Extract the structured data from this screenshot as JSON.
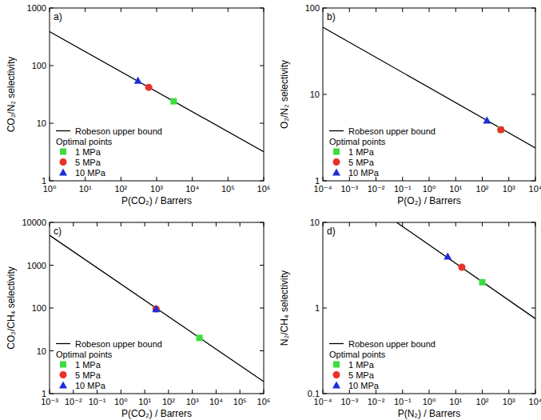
{
  "chart_data": [
    {
      "type": "scatter",
      "title": "a)",
      "xlabel": "P(CO₂) / Barrers",
      "ylabel": "CO₂/N₂ selectivity",
      "log": true,
      "legend": "lower left",
      "legend_title": "Optimal points",
      "xlim": [
        1,
        1000000
      ],
      "ylim": [
        1,
        1000
      ],
      "xticks": [
        {
          "value": 1,
          "label": "10⁰"
        },
        {
          "value": 10,
          "label": "10¹"
        },
        {
          "value": 100,
          "label": "10²"
        },
        {
          "value": 1000,
          "label": "10³"
        },
        {
          "value": 10000,
          "label": "10⁴"
        },
        {
          "value": 100000,
          "label": "10⁵"
        },
        {
          "value": 1000000,
          "label": "10⁶"
        }
      ],
      "yticks": [
        1,
        10,
        100,
        1000
      ],
      "series": [
        {
          "name": "Robeson upper bound",
          "type": "line",
          "line_style": "solid",
          "color": "#000000",
          "x": [
            1,
            1000000
          ],
          "values": [
            390,
            3.2
          ]
        },
        {
          "name": "1 MPa",
          "type": "scatter",
          "marker": "square",
          "color": "#3ddc3d",
          "x": [
            3000
          ],
          "values": [
            24
          ]
        },
        {
          "name": "5 MPa",
          "type": "scatter",
          "marker": "circle",
          "color": "#e8312a",
          "x": [
            600
          ],
          "values": [
            42
          ]
        },
        {
          "name": "10 MPa",
          "type": "scatter",
          "marker": "triangle",
          "color": "#1f2ed8",
          "x": [
            300
          ],
          "values": [
            55
          ]
        }
      ]
    },
    {
      "type": "scatter",
      "title": "b)",
      "xlabel": "P(O₂) / Barrers",
      "ylabel": "O₂/N₂ selectivity",
      "log": true,
      "legend": "lower left",
      "legend_title": "Optimal points",
      "xlim": [
        0.0001,
        10000
      ],
      "ylim": [
        1,
        100
      ],
      "xticks": [
        {
          "value": 0.0001,
          "label": "10⁻⁴"
        },
        {
          "value": 0.001,
          "label": "10⁻³"
        },
        {
          "value": 0.01,
          "label": "10⁻²"
        },
        {
          "value": 0.1,
          "label": "10⁻¹"
        },
        {
          "value": 1,
          "label": "10⁰"
        },
        {
          "value": 10,
          "label": "10¹"
        },
        {
          "value": 100,
          "label": "10²"
        },
        {
          "value": 1000,
          "label": "10³"
        },
        {
          "value": 10000,
          "label": "10⁴"
        }
      ],
      "yticks": [
        1,
        10,
        100
      ],
      "series": [
        {
          "name": "Robeson upper bound",
          "type": "line",
          "line_style": "solid",
          "color": "#000000",
          "x": [
            0.0001,
            10000
          ],
          "values": [
            60,
            2.4
          ]
        },
        {
          "name": "1 MPa",
          "type": "scatter",
          "marker": "square",
          "color": "#3ddc3d",
          "x": [
            500
          ],
          "values": [
            3.9
          ]
        },
        {
          "name": "5 MPa",
          "type": "scatter",
          "marker": "circle",
          "color": "#e8312a",
          "x": [
            500
          ],
          "values": [
            3.9
          ]
        },
        {
          "name": "10 MPa",
          "type": "scatter",
          "marker": "triangle",
          "color": "#1f2ed8",
          "x": [
            150
          ],
          "values": [
            5
          ]
        }
      ]
    },
    {
      "type": "scatter",
      "title": "c)",
      "xlabel": "P(CO₂) / Barrers",
      "ylabel": "CO₂/CH₄ selectivity",
      "log": true,
      "legend": "lower left",
      "legend_title": "Optimal points",
      "xlim": [
        0.001,
        1000000
      ],
      "ylim": [
        1,
        10000
      ],
      "xticks": [
        {
          "value": 0.001,
          "label": "10⁻³"
        },
        {
          "value": 0.01,
          "label": "10⁻²"
        },
        {
          "value": 0.1,
          "label": "10⁻¹"
        },
        {
          "value": 1,
          "label": "10⁰"
        },
        {
          "value": 10,
          "label": "10¹"
        },
        {
          "value": 100,
          "label": "10²"
        },
        {
          "value": 1000,
          "label": "10³"
        },
        {
          "value": 10000,
          "label": "10⁴"
        },
        {
          "value": 100000,
          "label": "10⁵"
        },
        {
          "value": 1000000,
          "label": "10⁶"
        }
      ],
      "yticks": [
        1,
        10,
        100,
        1000,
        10000
      ],
      "series": [
        {
          "name": "Robeson upper bound",
          "type": "line",
          "line_style": "solid",
          "color": "#000000",
          "x": [
            0.001,
            1000000
          ],
          "values": [
            5000,
            1.9
          ]
        },
        {
          "name": "1 MPa",
          "type": "scatter",
          "marker": "square",
          "color": "#3ddc3d",
          "x": [
            2000
          ],
          "values": [
            20
          ]
        },
        {
          "name": "5 MPa",
          "type": "scatter",
          "marker": "circle",
          "color": "#e8312a",
          "x": [
            30
          ],
          "values": [
            95
          ]
        },
        {
          "name": "10 MPa",
          "type": "scatter",
          "marker": "triangle",
          "color": "#1f2ed8",
          "x": [
            30
          ],
          "values": [
            95
          ]
        }
      ]
    },
    {
      "type": "scatter",
      "title": "d)",
      "xlabel": "P(N₂) / Barrers",
      "ylabel": "N₂/CH₄ selectivity",
      "log": true,
      "legend": "lower left",
      "legend_title": "Optimal points",
      "xlim": [
        0.0001,
        10000
      ],
      "ylim": [
        0.1,
        10
      ],
      "xticks": [
        {
          "value": 0.0001,
          "label": "10⁻⁴"
        },
        {
          "value": 0.001,
          "label": "10⁻³"
        },
        {
          "value": 0.01,
          "label": "10⁻²"
        },
        {
          "value": 0.1,
          "label": "10⁻¹"
        },
        {
          "value": 1,
          "label": "10⁰"
        },
        {
          "value": 10,
          "label": "10¹"
        },
        {
          "value": 100,
          "label": "10²"
        },
        {
          "value": 1000,
          "label": "10³"
        },
        {
          "value": 10000,
          "label": "10⁴"
        }
      ],
      "yticks": [
        0.1,
        1,
        10
      ],
      "series": [
        {
          "name": "Robeson upper bound",
          "type": "line",
          "line_style": "solid",
          "color": "#000000",
          "x": [
            0.06,
            10000
          ],
          "values": [
            10,
            0.75
          ]
        },
        {
          "name": "1 MPa",
          "type": "scatter",
          "marker": "square",
          "color": "#3ddc3d",
          "x": [
            100
          ],
          "values": [
            2
          ]
        },
        {
          "name": "5 MPa",
          "type": "scatter",
          "marker": "circle",
          "color": "#e8312a",
          "x": [
            17
          ],
          "values": [
            3
          ]
        },
        {
          "name": "10 MPa",
          "type": "scatter",
          "marker": "triangle",
          "color": "#1f2ed8",
          "x": [
            5
          ],
          "values": [
            4
          ]
        }
      ]
    }
  ]
}
